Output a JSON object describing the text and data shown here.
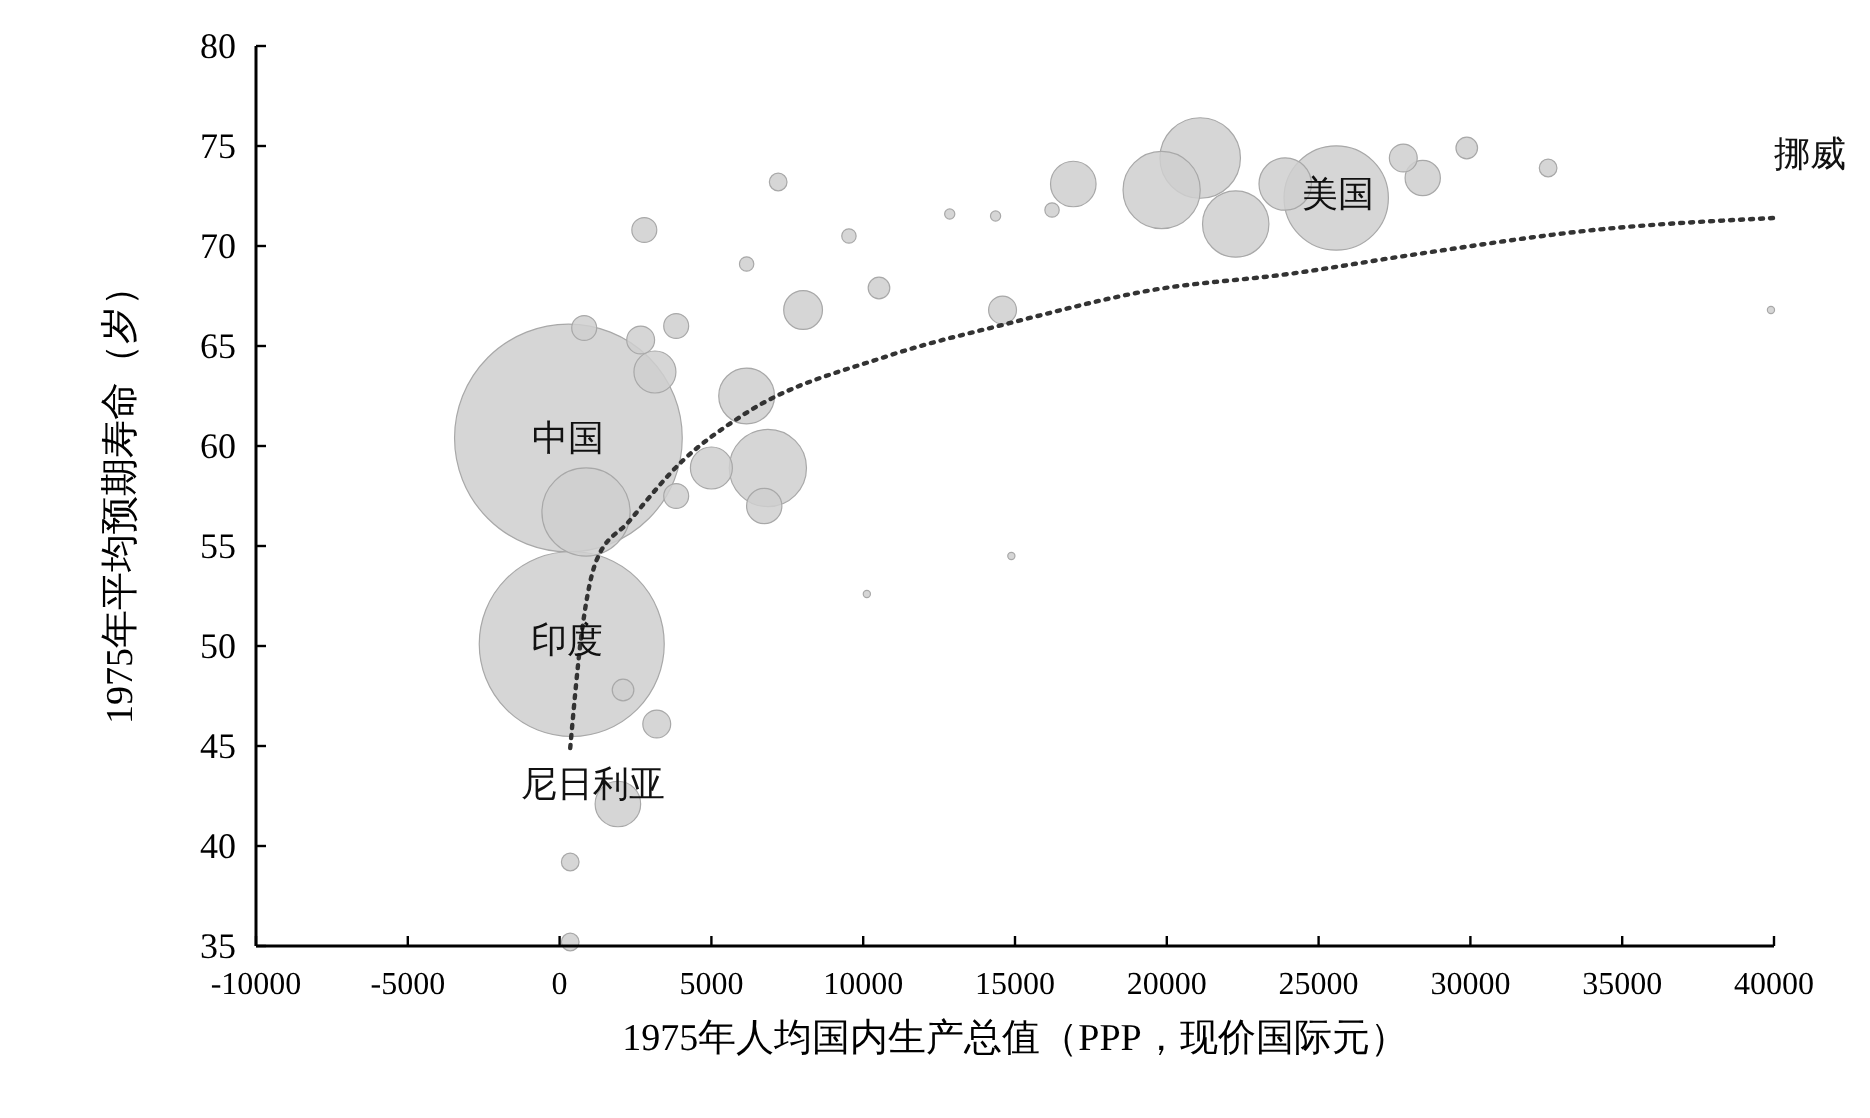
{
  "chart_data": {
    "type": "bubble",
    "xlabel": "1975年人均国内生产总值（PPP，现价国际元）",
    "ylabel": "1975年平均预期寿命（岁）",
    "xlim": [
      -10000,
      40000
    ],
    "xticks": [
      -10000,
      -5000,
      0,
      5000,
      10000,
      15000,
      20000,
      25000,
      30000,
      35000,
      40000
    ],
    "ylim": [
      35,
      80
    ],
    "yticks": [
      35,
      40,
      45,
      50,
      55,
      60,
      65,
      70,
      75,
      80
    ],
    "series": [
      {
        "color": "#cfcfcf",
        "x": [
          290,
          400,
          870,
          1920,
          2790,
          810,
          2670,
          3840,
          3140,
          3840,
          2090,
          3200,
          350,
          350,
          6160,
          6860,
          6740,
          5000,
          8020,
          10520,
          6160,
          7200,
          9530,
          12850,
          14360,
          14590,
          16220,
          16920,
          19830,
          21100,
          22270,
          23900,
          25580,
          27790,
          28430,
          29880,
          32560,
          14880,
          10120,
          39900
        ],
        "values": [
          60.4,
          50.1,
          56.7,
          42.1,
          70.8,
          65.9,
          65.3,
          66.0,
          63.7,
          57.5,
          47.8,
          46.1,
          39.2,
          35.2,
          62.5,
          58.9,
          57.0,
          58.9,
          66.8,
          67.9,
          69.1,
          73.2,
          70.5,
          71.6,
          71.5,
          66.8,
          71.8,
          73.1,
          72.8,
          74.4,
          71.1,
          73.1,
          72.4,
          74.4,
          73.4,
          74.9,
          73.9,
          54.5,
          52.6,
          66.8
        ],
        "sizes": [
          1,
          0.66,
          0.15,
          0.04,
          0.012,
          0.012,
          0.015,
          0.012,
          0.034,
          0.012,
          0.009,
          0.015,
          0.006,
          0.006,
          0.06,
          0.115,
          0.024,
          0.034,
          0.029,
          0.009,
          0.004,
          0.006,
          0.004,
          0.002,
          0.002,
          0.015,
          0.004,
          0.04,
          0.115,
          0.125,
          0.085,
          0.053,
          0.21,
          0.015,
          0.024,
          0.009,
          0.006,
          0.001,
          0.001,
          0.001
        ]
      },
      {
        "type": "line",
        "color": "#333333",
        "line_style": "dotted",
        "marker": "none",
        "x": [
          350,
          700,
          1220,
          2270,
          4010,
          5990,
          10810,
          14710,
          19530,
          24010,
          28260,
          34070,
          40000
        ],
        "values": [
          44.9,
          50.3,
          54.3,
          56.2,
          59.2,
          61.5,
          64.5,
          66.1,
          67.8,
          68.6,
          69.6,
          70.8,
          71.4
        ]
      }
    ],
    "annotations": [
      {
        "text": "中国",
        "x": 290,
        "y": 60.4
      },
      {
        "text": "印度",
        "x": 230,
        "y": 50.3
      },
      {
        "text": "尼日利亚",
        "x": 1100,
        "y": 43.1
      },
      {
        "text": "美国",
        "x": 25640,
        "y": 72.6
      },
      "挪威"
    ]
  }
}
